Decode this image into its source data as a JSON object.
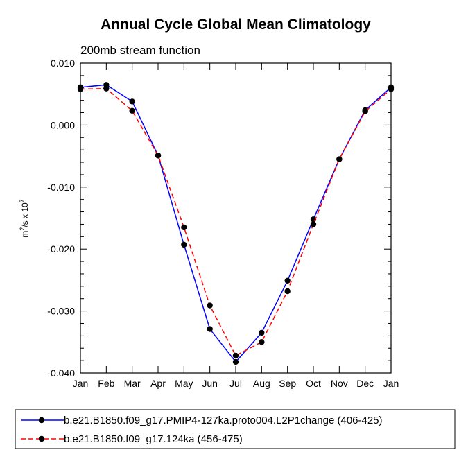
{
  "chart_data": {
    "type": "line",
    "title": "Annual Cycle Global Mean Climatology",
    "subtitle": "200mb stream function",
    "xlabel": "",
    "ylabel": {
      "base": "m",
      "sup1": "2",
      "mid": "/s x 10",
      "sup2": "7"
    },
    "categories": [
      "Jan",
      "Feb",
      "Mar",
      "Apr",
      "May",
      "Jun",
      "Jul",
      "Aug",
      "Sep",
      "Oct",
      "Nov",
      "Dec",
      "Jan"
    ],
    "ylim": [
      -0.04,
      0.01
    ],
    "yticks": [
      0.01,
      0.0,
      -0.01,
      -0.02,
      -0.03,
      -0.04
    ],
    "ytick_labels": [
      "0.010",
      "0.000",
      "-0.010",
      "-0.020",
      "-0.030",
      "-0.040"
    ],
    "series": [
      {
        "name": "b.e21.B1850.f09_g17.PMIP4-127ka.proto004.L2P1change (406-425)",
        "color": "#0000ff",
        "dash": "solid",
        "values": [
          0.0061,
          0.0065,
          0.0038,
          -0.0049,
          -0.0193,
          -0.0329,
          -0.0382,
          -0.0335,
          -0.0251,
          -0.0152,
          -0.0055,
          0.0024,
          0.0061
        ]
      },
      {
        "name": "b.e21.B1850.f09_g17.124ka (456-475)",
        "color": "#ff0000",
        "dash": "dashed",
        "values": [
          0.0058,
          0.0059,
          0.0023,
          -0.0049,
          -0.0165,
          -0.0291,
          -0.0372,
          -0.035,
          -0.0268,
          -0.016,
          -0.0055,
          0.0022,
          0.0058
        ]
      }
    ],
    "legend_position": "bottom"
  }
}
